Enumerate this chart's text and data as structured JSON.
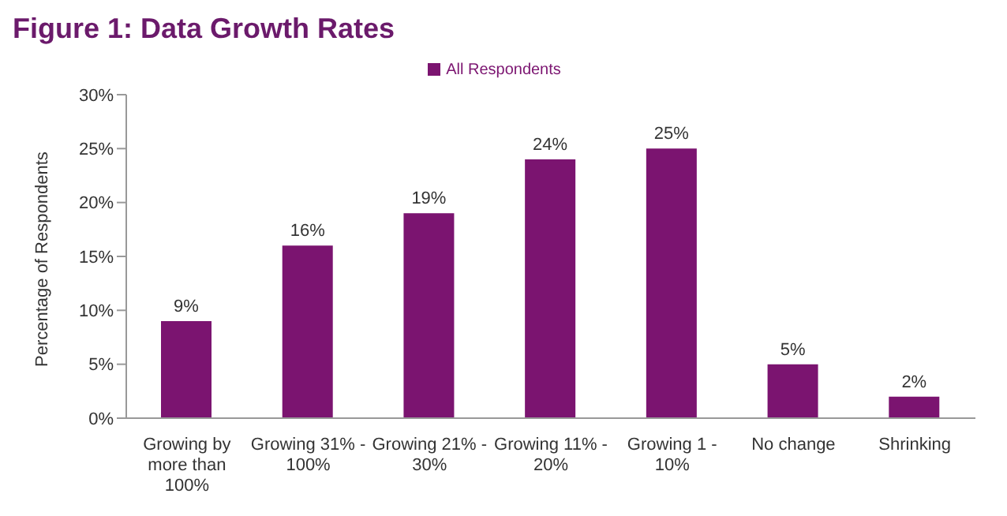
{
  "chart_data": {
    "type": "bar",
    "title": "Figure 1: Data Growth Rates",
    "ylabel": "Percentage of Respondents",
    "categories": [
      "Growing by more than 100%",
      "Growing 31% - 100%",
      "Growing 21% - 30%",
      "Growing 11% - 20%",
      "Growing 1 - 10%",
      "No change",
      "Shrinking"
    ],
    "series": [
      {
        "name": "All Respondents",
        "color": "#7b1470",
        "values": [
          9,
          16,
          19,
          24,
          25,
          5,
          2
        ],
        "value_labels": [
          "9%",
          "16%",
          "19%",
          "24%",
          "25%",
          "5%",
          "2%"
        ]
      }
    ],
    "ylim": [
      0,
      30
    ],
    "yticks": [
      {
        "value": 0,
        "label": "0%"
      },
      {
        "value": 5,
        "label": "5%"
      },
      {
        "value": 10,
        "label": "10%"
      },
      {
        "value": 15,
        "label": "15%"
      },
      {
        "value": 20,
        "label": "20%"
      },
      {
        "value": 25,
        "label": "25%"
      },
      {
        "value": 30,
        "label": "30%"
      }
    ],
    "grid": false,
    "legend": "top"
  }
}
